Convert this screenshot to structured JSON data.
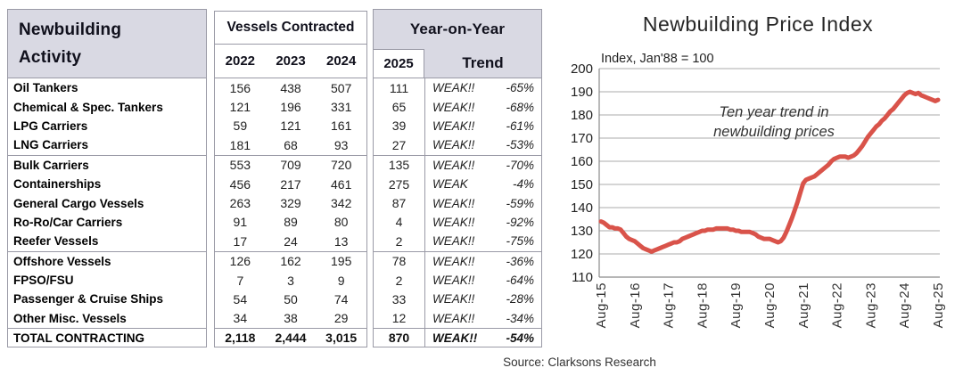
{
  "colors": {
    "header_fill": "#d9d9e3",
    "table_border": "#9a9aa6",
    "grid_line": "#ababab",
    "axis_line": "#8a8a8a",
    "line_color": "#d9534a"
  },
  "table": {
    "title1": "Newbuilding",
    "title2": "Activity",
    "vessels_contracted": "Vessels Contracted",
    "years": [
      "2022",
      "2023",
      "2024"
    ],
    "yoy": "Year-on-Year",
    "y2025": "2025",
    "trend": "Trend",
    "groups": [
      {
        "rows": [
          {
            "label": "Oil Tankers",
            "y2022": "156",
            "y2023": "438",
            "y2024": "507",
            "y2025": "111",
            "trend": "WEAK!!",
            "pct": "-65%"
          },
          {
            "label": "Chemical & Spec. Tankers",
            "y2022": "121",
            "y2023": "196",
            "y2024": "331",
            "y2025": "65",
            "trend": "WEAK!!",
            "pct": "-68%"
          },
          {
            "label": "LPG Carriers",
            "y2022": "59",
            "y2023": "121",
            "y2024": "161",
            "y2025": "39",
            "trend": "WEAK!!",
            "pct": "-61%"
          },
          {
            "label": "LNG Carriers",
            "y2022": "181",
            "y2023": "68",
            "y2024": "93",
            "y2025": "27",
            "trend": "WEAK!!",
            "pct": "-53%"
          }
        ]
      },
      {
        "rows": [
          {
            "label": "Bulk Carriers",
            "y2022": "553",
            "y2023": "709",
            "y2024": "720",
            "y2025": "135",
            "trend": "WEAK!!",
            "pct": "-70%"
          },
          {
            "label": "Containerships",
            "y2022": "456",
            "y2023": "217",
            "y2024": "461",
            "y2025": "275",
            "trend": "WEAK",
            "pct": "-4%"
          },
          {
            "label": "General Cargo Vessels",
            "y2022": "263",
            "y2023": "329",
            "y2024": "342",
            "y2025": "87",
            "trend": "WEAK!!",
            "pct": "-59%"
          },
          {
            "label": "Ro-Ro/Car Carriers",
            "y2022": "91",
            "y2023": "89",
            "y2024": "80",
            "y2025": "4",
            "trend": "WEAK!!",
            "pct": "-92%"
          },
          {
            "label": "Reefer Vessels",
            "y2022": "17",
            "y2023": "24",
            "y2024": "13",
            "y2025": "2",
            "trend": "WEAK!!",
            "pct": "-75%"
          }
        ]
      },
      {
        "rows": [
          {
            "label": "Offshore Vessels",
            "y2022": "126",
            "y2023": "162",
            "y2024": "195",
            "y2025": "78",
            "trend": "WEAK!!",
            "pct": "-36%"
          },
          {
            "label": "FPSO/FSU",
            "y2022": "7",
            "y2023": "3",
            "y2024": "9",
            "y2025": "2",
            "trend": "WEAK!!",
            "pct": "-64%"
          },
          {
            "label": "Passenger & Cruise Ships",
            "y2022": "54",
            "y2023": "50",
            "y2024": "74",
            "y2025": "33",
            "trend": "WEAK!!",
            "pct": "-28%"
          },
          {
            "label": "Other Misc. Vessels",
            "y2022": "34",
            "y2023": "38",
            "y2024": "29",
            "y2025": "12",
            "trend": "WEAK!!",
            "pct": "-34%"
          }
        ]
      }
    ],
    "total": {
      "label": "TOTAL CONTRACTING",
      "y2022": "2,118",
      "y2023": "2,444",
      "y2024": "3,015",
      "y2025": "870",
      "trend": "WEAK!!",
      "pct": "-54%"
    }
  },
  "chart_data": {
    "type": "line",
    "title": "Newbuilding Price Index",
    "subtitle": "Index, Jan'88 = 100",
    "annotation": [
      "Ten year trend in",
      "newbuilding prices"
    ],
    "x_tick_labels": [
      "Aug-15",
      "Aug-16",
      "Aug-17",
      "Aug-18",
      "Aug-19",
      "Aug-20",
      "Aug-21",
      "Aug-22",
      "Aug-23",
      "Aug-24",
      "Aug-25"
    ],
    "x_unit": "monthly",
    "ylim": [
      110,
      200
    ],
    "ytick_step": 10,
    "grid": true,
    "legend": "none",
    "line_color": "#d9534a",
    "values": [
      134,
      133.5,
      132.5,
      131.5,
      131.5,
      131,
      131,
      130.5,
      129,
      127.5,
      126.5,
      126,
      125.5,
      124.5,
      123.5,
      122.5,
      122,
      121.5,
      121,
      121.5,
      122,
      122.5,
      123,
      123.5,
      124,
      124.5,
      125,
      125,
      125.5,
      126.5,
      127,
      127.5,
      128,
      128.5,
      129,
      129.5,
      130,
      130,
      130.5,
      130.5,
      130.5,
      131,
      131,
      131,
      131,
      131,
      130.5,
      130.5,
      130,
      130,
      129.5,
      129.5,
      129.5,
      129.5,
      129,
      128.5,
      127.5,
      127,
      126.5,
      126.5,
      126.5,
      126,
      125.5,
      125,
      125.5,
      127,
      129.5,
      132.5,
      135.5,
      139,
      142.5,
      146.5,
      150.5,
      152,
      152.5,
      153,
      153.5,
      154.5,
      155.5,
      156.5,
      157.5,
      158.5,
      160,
      161,
      161.5,
      162,
      162,
      162,
      161.5,
      162,
      162.5,
      163.5,
      165,
      166.5,
      168.5,
      170.5,
      172,
      173.5,
      175,
      176,
      177.5,
      178.5,
      180,
      181.5,
      182.5,
      184,
      185.5,
      187,
      188.5,
      189.5,
      190,
      189.5,
      189,
      189.5,
      188.5,
      188,
      187.5,
      187,
      186.5,
      186,
      186.5
    ]
  },
  "source": "Source: Clarksons Research"
}
